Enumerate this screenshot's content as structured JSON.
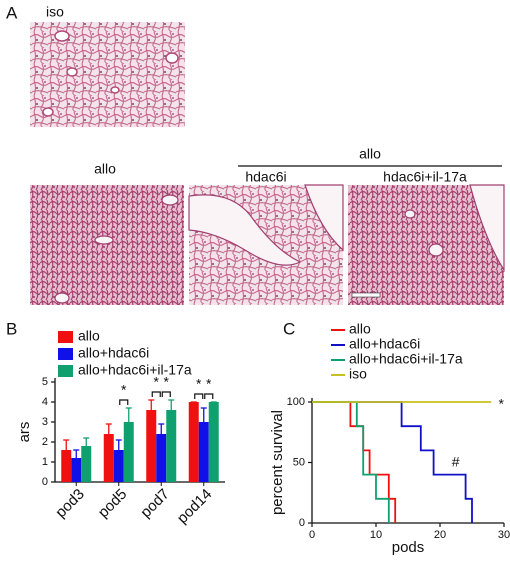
{
  "figure": {
    "panel_labels": [
      "A",
      "B",
      "C"
    ],
    "micrographs": {
      "top_label": "iso",
      "group_label": "allo",
      "labels": [
        "allo",
        "hdac6i",
        "hdac6i+il-17a"
      ]
    }
  },
  "chart_data": [
    {
      "type": "bar",
      "ylabel": "ars",
      "categories": [
        "pod3",
        "pod5",
        "pod7",
        "pod14"
      ],
      "series": [
        {
          "name": "allo",
          "color": "#f01010",
          "values": [
            1.6,
            2.4,
            3.6,
            4.0
          ],
          "errors": [
            0.5,
            0.5,
            0.5,
            0.0
          ]
        },
        {
          "name": "allo+hdac6i",
          "color": "#1010e8",
          "values": [
            1.2,
            1.6,
            2.4,
            3.0
          ],
          "errors": [
            0.4,
            0.5,
            0.5,
            0.7
          ]
        },
        {
          "name": "allo+hdac6i+il-17a",
          "color": "#10a070",
          "values": [
            1.8,
            3.0,
            3.6,
            4.0
          ],
          "errors": [
            0.4,
            0.7,
            0.5,
            0.0
          ]
        }
      ],
      "significance": [
        {
          "label": "*",
          "category": "pod5",
          "pair": [
            "allo+hdac6i",
            "allo+hdac6i+il-17a"
          ]
        },
        {
          "label": "*",
          "category": "pod7",
          "pair": [
            "allo",
            "allo+hdac6i"
          ]
        },
        {
          "label": "*",
          "category": "pod7",
          "pair": [
            "allo+hdac6i",
            "allo+hdac6i+il-17a"
          ]
        },
        {
          "label": "*",
          "category": "pod14",
          "pair": [
            "allo",
            "allo+hdac6i"
          ]
        },
        {
          "label": "*",
          "category": "pod14",
          "pair": [
            "allo+hdac6i",
            "allo+hdac6i+il-17a"
          ]
        }
      ],
      "ylim": [
        0,
        5
      ],
      "yticks": [
        0,
        1,
        2,
        3,
        4,
        5
      ]
    },
    {
      "type": "survival",
      "xlabel": "pods",
      "ylabel": "percent survival",
      "series": [
        {
          "name": "allo",
          "color": "#f01010",
          "x": [
            0,
            6,
            6,
            8,
            8,
            9,
            9,
            12,
            12,
            13,
            13
          ],
          "values": [
            100,
            100,
            80,
            80,
            60,
            60,
            40,
            40,
            20,
            20,
            0
          ]
        },
        {
          "name": "allo+hdac6i",
          "color": "#1010c8",
          "x": [
            0,
            14,
            14,
            17,
            17,
            19,
            19,
            24,
            24,
            25,
            25
          ],
          "values": [
            100,
            100,
            80,
            80,
            60,
            60,
            40,
            40,
            20,
            20,
            0
          ]
        },
        {
          "name": "allo+hdac6i+il-17a",
          "color": "#10a070",
          "x": [
            0,
            7,
            7,
            8,
            8,
            10,
            10,
            12,
            12
          ],
          "values": [
            100,
            100,
            80,
            80,
            40,
            40,
            20,
            20,
            0
          ]
        },
        {
          "name": "iso",
          "color": "#c8c020",
          "x": [
            0,
            28
          ],
          "values": [
            100,
            100
          ]
        }
      ],
      "annotations": [
        {
          "text": "#",
          "series": "allo+hdac6i"
        },
        {
          "text": "*",
          "series": "iso"
        }
      ],
      "xlim": [
        0,
        30
      ],
      "xticks": [
        0,
        10,
        20,
        30
      ],
      "ylim": [
        0,
        100
      ],
      "yticks": [
        0,
        50,
        100
      ]
    }
  ]
}
